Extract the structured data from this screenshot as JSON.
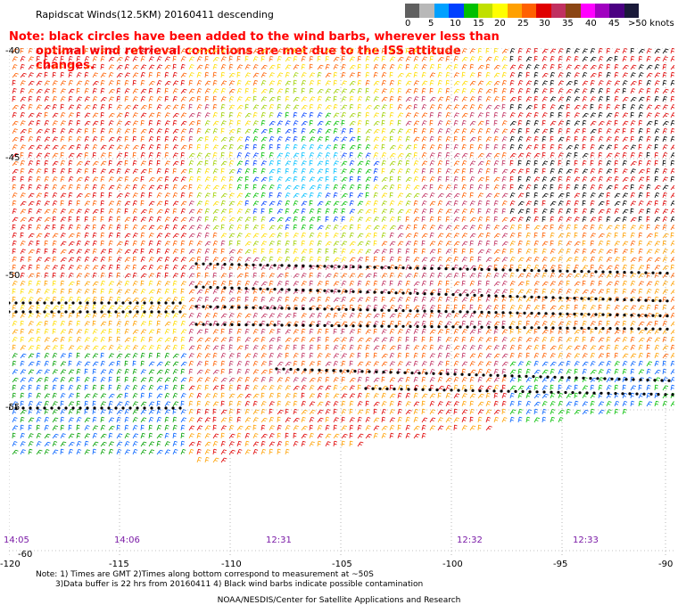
{
  "title": "Rapidscat Winds(12.5KM) 20160411 descending",
  "note": {
    "line1": "Note: black circles have been added to the wind barbs, wherever less than",
    "line2": "optimal wind retrieval conditions are met due to the ISS attitude changes."
  },
  "legend": {
    "labels": [
      "0",
      "5",
      "10",
      "15",
      "20",
      "25",
      "30",
      "35",
      "40",
      "45",
      ">50 knots"
    ],
    "colors": [
      "#606060",
      "#b8b8b8",
      "#00a0ff",
      "#0040ff",
      "#00c000",
      "#c0e000",
      "#ffff00",
      "#ffa000",
      "#ff6000",
      "#e00000",
      "#c03060",
      "#8b4513",
      "#ff00ff",
      "#a000c0",
      "#4b0082",
      "#1a1a3a"
    ]
  },
  "axes": {
    "y_labels": [
      "-40",
      "-45",
      "-50",
      "-55",
      "-60"
    ],
    "x_labels": [
      "-120",
      "-115",
      "-110",
      "-105",
      "-100",
      "-95",
      "-90"
    ]
  },
  "times": [
    "14:05",
    "14:06",
    "12:31",
    "12:32",
    "12:33"
  ],
  "footer": {
    "line1": "Note: 1) Times are GMT 2)Times along bottom correspond to measurement at ~50S",
    "line2": "3)Data buffer is 22 hrs from 20160411 4) Black wind barbs indicate possible contamination"
  },
  "credit": "NOAA/NESDIS/Center for Satellite Applications and Research",
  "map": {
    "lon_range": [
      -120,
      -90
    ],
    "lat_range": [
      -40,
      -60
    ],
    "grid": true
  }
}
